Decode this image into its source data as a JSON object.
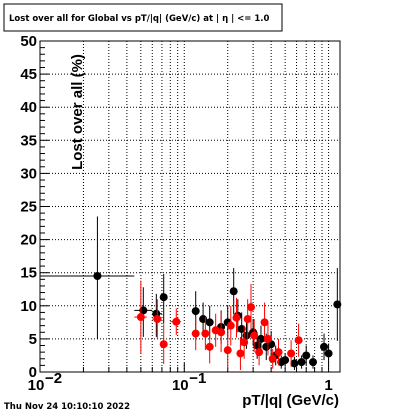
{
  "chart_data": {
    "type": "scatter",
    "title": "Lost over all for Global vs pT/|q| (GeV/c) at | η | <= 1.0",
    "xlabel": "pT/|q| (GeV/c)",
    "ylabel": "Lost over all (%)",
    "x_scale": "log",
    "xlim": [
      0.01,
      1.2
    ],
    "ylim": [
      0,
      50
    ],
    "x_ticks": [
      {
        "value": 0.01,
        "label": "10",
        "exp": "−2"
      },
      {
        "value": 0.1,
        "label": "10",
        "exp": "−1"
      },
      {
        "value": 1,
        "label": "1",
        "exp": ""
      }
    ],
    "y_ticks": [
      0,
      5,
      10,
      15,
      20,
      25,
      30,
      35,
      40,
      45,
      50
    ],
    "grid": true,
    "timestamp": "Thu Nov 24 10:10:10 2022",
    "series": [
      {
        "color": "#000000",
        "points": [
          {
            "x": 0.025,
            "y": 14.5,
            "xerr": [
              0.01,
              0.045
            ],
            "yerr": [
              9.5,
              9.0
            ]
          },
          {
            "x": 0.052,
            "y": 9.3,
            "xerr": [
              0.045,
              0.06
            ],
            "yerr": [
              4.0,
              3.5
            ]
          },
          {
            "x": 0.064,
            "y": 8.8,
            "xerr": [
              0.06,
              0.07
            ],
            "yerr": [
              3.5,
              3.0
            ]
          },
          {
            "x": 0.072,
            "y": 11.3,
            "xerr": [
              0.069,
              0.075
            ],
            "yerr": [
              4.0,
              3.5
            ]
          },
          {
            "x": 0.12,
            "y": 9.2,
            "xerr": [
              0.115,
              0.125
            ],
            "yerr": [
              3.0,
              3.0
            ]
          },
          {
            "x": 0.135,
            "y": 8.0,
            "yerr": [
              2.5,
              2.5
            ]
          },
          {
            "x": 0.15,
            "y": 7.5,
            "yerr": [
              2.5,
              2.5
            ]
          },
          {
            "x": 0.18,
            "y": 6.8,
            "yerr": [
              2.5,
              2.5
            ]
          },
          {
            "x": 0.2,
            "y": 7.5,
            "yerr": [
              2.5,
              2.5
            ]
          },
          {
            "x": 0.22,
            "y": 12.2,
            "yerr": [
              3.5,
              3.5
            ]
          },
          {
            "x": 0.235,
            "y": 8.5,
            "yerr": [
              2.5,
              2.5
            ]
          },
          {
            "x": 0.25,
            "y": 6.5,
            "yerr": [
              2.5,
              2.5
            ]
          },
          {
            "x": 0.27,
            "y": 5.5,
            "yerr": [
              2.0,
              2.0
            ]
          },
          {
            "x": 0.3,
            "y": 6.0,
            "yerr": [
              2.0,
              2.0
            ]
          },
          {
            "x": 0.32,
            "y": 4.0,
            "yerr": [
              2.0,
              2.0
            ]
          },
          {
            "x": 0.34,
            "y": 5.0,
            "yerr": [
              2.0,
              2.0
            ]
          },
          {
            "x": 0.37,
            "y": 3.8,
            "yerr": [
              2.0,
              2.0
            ]
          },
          {
            "x": 0.4,
            "y": 4.2,
            "yerr": [
              2.0,
              2.0
            ]
          },
          {
            "x": 0.43,
            "y": 2.5,
            "yerr": [
              1.5,
              1.5
            ]
          },
          {
            "x": 0.47,
            "y": 1.5,
            "yerr": [
              1.0,
              1.0
            ]
          },
          {
            "x": 0.5,
            "y": 1.8,
            "yerr": [
              1.0,
              1.0
            ]
          },
          {
            "x": 0.58,
            "y": 1.3,
            "yerr": [
              1.0,
              1.0
            ]
          },
          {
            "x": 0.65,
            "y": 1.5,
            "yerr": [
              1.0,
              1.0
            ]
          },
          {
            "x": 0.7,
            "y": 2.5,
            "yerr": [
              1.5,
              1.5
            ]
          },
          {
            "x": 0.78,
            "y": 1.5,
            "yerr": [
              1.0,
              1.0
            ]
          },
          {
            "x": 0.93,
            "y": 3.8,
            "yerr": [
              2.0,
              2.0
            ]
          },
          {
            "x": 1.0,
            "y": 2.8,
            "yerr": [
              1.5,
              1.5
            ]
          },
          {
            "x": 1.15,
            "y": 10.2,
            "xerr": [
              1.1,
              1.2
            ],
            "yerr": [
              5.5,
              5.5
            ]
          }
        ]
      },
      {
        "color": "#ff0000",
        "points": [
          {
            "x": 0.05,
            "y": 8.3,
            "xerr": [
              0.045,
              0.055
            ],
            "yerr": [
              5.5,
              5.5
            ]
          },
          {
            "x": 0.065,
            "y": 8.0,
            "xerr": [
              0.06,
              0.07
            ],
            "yerr": [
              3.0,
              3.0
            ]
          },
          {
            "x": 0.072,
            "y": 4.2,
            "xerr": [
              0.068,
              0.076
            ],
            "yerr": [
              3.0,
              3.0
            ]
          },
          {
            "x": 0.088,
            "y": 7.6,
            "xerr": [
              0.08,
              0.095
            ],
            "yerr": [
              2.0,
              2.0
            ]
          },
          {
            "x": 0.12,
            "y": 5.8,
            "xerr": [
              0.113,
              0.127
            ],
            "yerr": [
              2.5,
              2.5
            ]
          },
          {
            "x": 0.14,
            "y": 5.8,
            "yerr": [
              2.5,
              2.5
            ]
          },
          {
            "x": 0.15,
            "y": 3.8,
            "yerr": [
              2.5,
              2.5
            ]
          },
          {
            "x": 0.165,
            "y": 6.3,
            "yerr": [
              2.5,
              2.5
            ]
          },
          {
            "x": 0.18,
            "y": 6.0,
            "yerr": [
              3.0,
              3.0
            ]
          },
          {
            "x": 0.2,
            "y": 3.3,
            "yerr": [
              3.0,
              3.0
            ]
          },
          {
            "x": 0.21,
            "y": 7.0,
            "yerr": [
              3.0,
              3.0
            ]
          },
          {
            "x": 0.23,
            "y": 8.2,
            "yerr": [
              3.0,
              3.0
            ]
          },
          {
            "x": 0.245,
            "y": 2.8,
            "yerr": [
              2.5,
              2.5
            ]
          },
          {
            "x": 0.26,
            "y": 4.5,
            "yerr": [
              2.5,
              2.5
            ]
          },
          {
            "x": 0.275,
            "y": 8.0,
            "yerr": [
              3.0,
              3.0
            ]
          },
          {
            "x": 0.29,
            "y": 9.8,
            "yerr": [
              3.5,
              3.5
            ]
          },
          {
            "x": 0.305,
            "y": 5.5,
            "yerr": [
              2.5,
              2.5
            ]
          },
          {
            "x": 0.33,
            "y": 3.0,
            "yerr": [
              2.0,
              2.0
            ]
          },
          {
            "x": 0.36,
            "y": 7.5,
            "yerr": [
              3.0,
              3.0
            ]
          },
          {
            "x": 0.38,
            "y": 5.0,
            "yerr": [
              2.5,
              2.5
            ]
          },
          {
            "x": 0.41,
            "y": 2.0,
            "yerr": [
              1.5,
              1.5
            ]
          },
          {
            "x": 0.45,
            "y": 3.0,
            "yerr": [
              2.0,
              2.0
            ]
          },
          {
            "x": 0.55,
            "y": 2.8,
            "yerr": [
              2.0,
              2.0
            ]
          },
          {
            "x": 0.62,
            "y": 4.8,
            "yerr": [
              2.5,
              2.5
            ]
          }
        ]
      }
    ]
  }
}
